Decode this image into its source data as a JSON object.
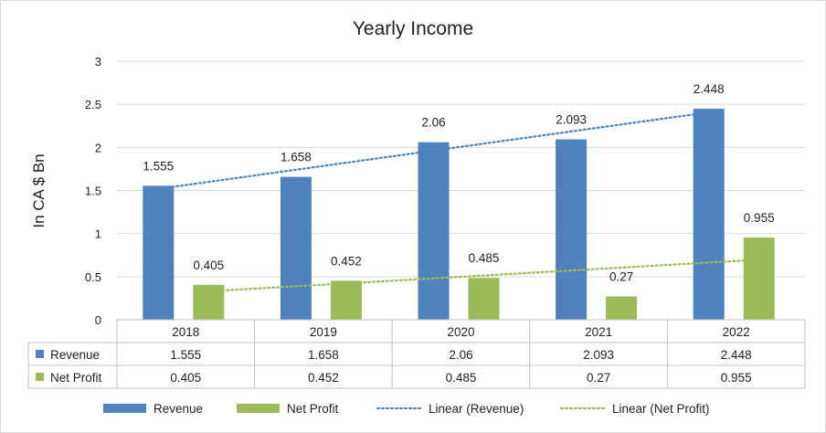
{
  "chart_data": {
    "type": "bar",
    "title": "Yearly Income",
    "xlabel": "",
    "ylabel": "In CA $ Bn",
    "ylim": [
      0,
      3
    ],
    "yticks": [
      "0",
      "0.5",
      "1",
      "1.5",
      "2",
      "2.5",
      "3"
    ],
    "grid": true,
    "categories": [
      "2018",
      "2019",
      "2020",
      "2021",
      "2022"
    ],
    "series": [
      {
        "name": "Revenue",
        "color": "#4f81bd",
        "values": [
          1.555,
          1.658,
          2.06,
          2.093,
          2.448
        ],
        "labels": [
          "1.555",
          "1.658",
          "2.06",
          "2.093",
          "2.448"
        ]
      },
      {
        "name": "Net Profit",
        "color": "#9bbb59",
        "values": [
          0.405,
          0.452,
          0.485,
          0.27,
          0.955
        ],
        "labels": [
          "0.405",
          "0.452",
          "0.485",
          "0.27",
          "0.955"
        ]
      }
    ],
    "trendlines": [
      {
        "name": "Linear (Revenue)",
        "series": "Revenue",
        "color": "#4f81bd",
        "style": "dotted"
      },
      {
        "name": "Linear (Net Profit)",
        "series": "Net Profit",
        "color": "#9bbb59",
        "style": "dotted"
      }
    ],
    "data_table": true,
    "legend_position": "bottom"
  }
}
